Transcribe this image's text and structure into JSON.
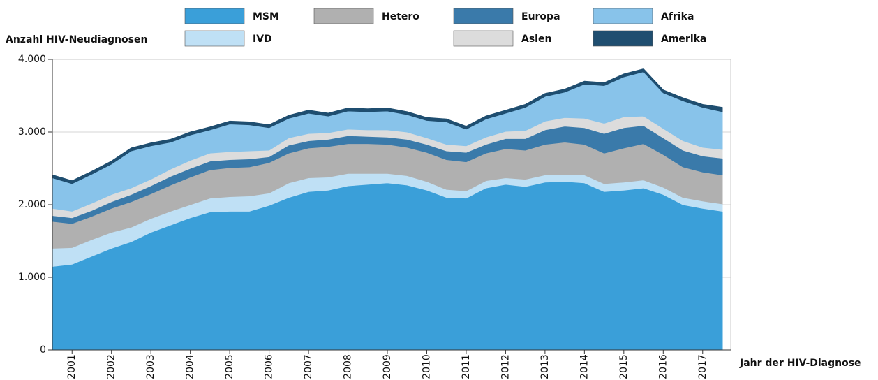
{
  "chart_data": {
    "type": "stacked-area",
    "y_label": "Anzahl HIV-Neudiagnosen",
    "x_label": "Jahr der HIV-Diagnose",
    "x": [
      2001,
      2001.5,
      2002,
      2002.5,
      2003,
      2003.5,
      2004,
      2004.5,
      2005,
      2005.5,
      2006,
      2006.5,
      2007,
      2007.5,
      2008,
      2008.5,
      2009,
      2009.5,
      2010,
      2010.5,
      2011,
      2011.5,
      2012,
      2012.5,
      2013,
      2013.5,
      2014,
      2014.5,
      2015,
      2015.5,
      2016,
      2016.5,
      2017,
      2017.5,
      2018
    ],
    "xlim": [
      2001,
      2018
    ],
    "xticks": [
      {
        "value": 2001.5,
        "label": "2001"
      },
      {
        "value": 2002.5,
        "label": "2002"
      },
      {
        "value": 2003.5,
        "label": "2003"
      },
      {
        "value": 2004.5,
        "label": "2004"
      },
      {
        "value": 2005.5,
        "label": "2005"
      },
      {
        "value": 2006.5,
        "label": "2006"
      },
      {
        "value": 2007.5,
        "label": "2007"
      },
      {
        "value": 2008.5,
        "label": "2008"
      },
      {
        "value": 2009.5,
        "label": "2009"
      },
      {
        "value": 2010.5,
        "label": "2010"
      },
      {
        "value": 2011.5,
        "label": "2011"
      },
      {
        "value": 2012.5,
        "label": "2012"
      },
      {
        "value": 2013.5,
        "label": "2013"
      },
      {
        "value": 2014.5,
        "label": "2014"
      },
      {
        "value": 2015.5,
        "label": "2015"
      },
      {
        "value": 2016.5,
        "label": "2016"
      },
      {
        "value": 2017.5,
        "label": "2017"
      }
    ],
    "ylim": [
      0,
      4000
    ],
    "yticks": [
      0,
      {
        "value": 1000,
        "label": "1.000"
      },
      {
        "value": 2000,
        "label": "2.000"
      },
      {
        "value": 3000,
        "label": "3.000"
      },
      {
        "value": 4000,
        "label": "4.000"
      }
    ],
    "grid": true,
    "series": [
      {
        "name": "MSM",
        "color": "#3a9fd9",
        "values": [
          1150,
          1180,
          1290,
          1400,
          1490,
          1620,
          1720,
          1820,
          1900,
          1910,
          1910,
          1990,
          2100,
          2180,
          2200,
          2260,
          2280,
          2300,
          2270,
          2200,
          2100,
          2090,
          2230,
          2280,
          2250,
          2310,
          2320,
          2300,
          2180,
          2200,
          2230,
          2140,
          2000,
          1950,
          1910
        ]
      },
      {
        "name": "IVD",
        "color": "#bfe0f5",
        "values": [
          250,
          230,
          230,
          220,
          200,
          190,
          190,
          180,
          190,
          200,
          210,
          170,
          200,
          190,
          180,
          170,
          150,
          130,
          130,
          120,
          110,
          100,
          100,
          90,
          100,
          100,
          100,
          110,
          110,
          110,
          110,
          100,
          100,
          100,
          100
        ]
      },
      {
        "name": "Hetero",
        "color": "#b0b0b0",
        "values": [
          370,
          330,
          320,
          330,
          350,
          340,
          360,
          380,
          390,
          400,
          400,
          420,
          410,
          410,
          420,
          410,
          410,
          400,
          390,
          400,
          410,
          400,
          380,
          400,
          400,
          420,
          440,
          420,
          420,
          470,
          500,
          450,
          420,
          400,
          400
        ]
      },
      {
        "name": "Europa",
        "color": "#3a7aaa",
        "values": [
          80,
          80,
          80,
          90,
          100,
          110,
          120,
          120,
          120,
          110,
          110,
          80,
          110,
          100,
          100,
          110,
          100,
          100,
          110,
          110,
          120,
          130,
          120,
          140,
          160,
          200,
          220,
          230,
          270,
          280,
          250,
          230,
          230,
          220,
          230
        ]
      },
      {
        "name": "Asien",
        "color": "#dcdcdc",
        "values": [
          100,
          90,
          100,
          100,
          90,
          90,
          100,
          110,
          110,
          110,
          110,
          90,
          100,
          100,
          90,
          90,
          90,
          100,
          100,
          90,
          90,
          90,
          100,
          100,
          110,
          120,
          120,
          130,
          140,
          150,
          130,
          130,
          130,
          120,
          120
        ]
      },
      {
        "name": "Afrika",
        "color": "#88c3ea",
        "values": [
          420,
          380,
          400,
          420,
          510,
          460,
          370,
          350,
          320,
          380,
          360,
          310,
          270,
          280,
          230,
          250,
          250,
          260,
          240,
          240,
          310,
          230,
          250,
          250,
          320,
          340,
          350,
          470,
          520,
          550,
          610,
          490,
          550,
          550,
          520
        ]
      },
      {
        "name": "Amerika",
        "color": "#1f4e70",
        "values": [
          40,
          40,
          40,
          40,
          40,
          40,
          40,
          40,
          40,
          40,
          40,
          40,
          40,
          40,
          40,
          40,
          40,
          40,
          40,
          40,
          40,
          40,
          40,
          40,
          40,
          40,
          40,
          40,
          40,
          40,
          40,
          40,
          40,
          40,
          60
        ]
      }
    ]
  }
}
